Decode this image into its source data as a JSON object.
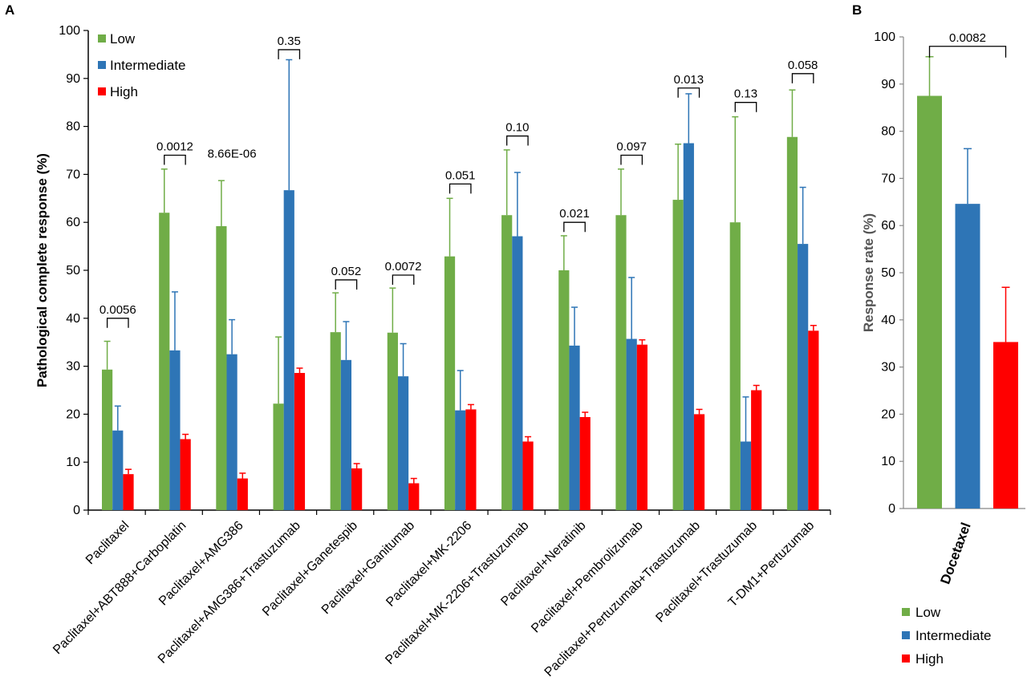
{
  "panel_a_label": "A",
  "panel_b_label": "B",
  "colors": {
    "Low": "#70ad47",
    "Intermediate": "#2e75b6",
    "High": "#ff0000"
  },
  "chart_data": [
    {
      "type": "bar",
      "ylabel": "Pathological complete response (%)",
      "ylim": [
        0,
        100
      ],
      "yticks": [
        0,
        10,
        20,
        30,
        40,
        50,
        60,
        70,
        80,
        90,
        100
      ],
      "grid": false,
      "legend_position": "top-left",
      "categories": [
        "Paclitaxel",
        "Paclitaxel+ABT888+Carboplatin",
        "Paclitaxel+AMG386",
        "Paclitaxel+AMG386+Trastuzumab",
        "Paclitaxel+Ganetespib",
        "Paclitaxel+Ganitumab",
        "Paclitaxel+MK-2206",
        "Paclitaxel+MK-2206+Trastuzumab",
        "Paclitaxel+Neratinib",
        "Paclitaxel+Pembrolizumab",
        "Paclitaxel+Pertuzumab+Trastuzumab",
        "Paclitaxel+Trastuzumab",
        "T-DM1+Pertuzumab"
      ],
      "series": [
        {
          "name": "Low",
          "values": [
            29.3,
            62.0,
            59.2,
            22.2,
            37.1,
            37.0,
            52.9,
            61.5,
            50.0,
            61.5,
            64.7,
            60.0,
            77.8
          ],
          "error_upper": [
            35.2,
            71.1,
            68.7,
            36.1,
            45.3,
            46.3,
            65.0,
            75.1,
            57.2,
            71.1,
            76.3,
            82.0,
            87.6
          ]
        },
        {
          "name": "Intermediate",
          "values": [
            16.6,
            33.3,
            32.5,
            66.7,
            31.3,
            27.9,
            20.8,
            57.1,
            34.3,
            35.7,
            76.5,
            14.3,
            55.5
          ],
          "error_upper": [
            21.7,
            45.5,
            39.7,
            93.9,
            39.3,
            34.7,
            29.1,
            70.4,
            42.3,
            48.5,
            86.8,
            23.6,
            67.3
          ]
        },
        {
          "name": "High",
          "values": [
            7.5,
            14.8,
            6.6,
            28.6,
            8.7,
            5.6,
            21.0,
            14.3,
            19.4,
            34.5,
            20.0,
            25.0,
            37.4
          ],
          "error_upper": [
            8.5,
            15.8,
            7.7,
            29.6,
            9.7,
            6.6,
            22.0,
            15.3,
            20.4,
            35.5,
            21.0,
            26.0,
            38.5
          ]
        }
      ],
      "annotations": [
        {
          "category_index": 0,
          "text": "0.0056",
          "level": 40
        },
        {
          "category_index": 1,
          "text": "0.0012",
          "level": 74
        },
        {
          "category_index": 2,
          "text": "8.66E-06",
          "level": null
        },
        {
          "category_index": 3,
          "text": "0.35",
          "level": 96
        },
        {
          "category_index": 4,
          "text": "0.052",
          "level": 48
        },
        {
          "category_index": 5,
          "text": "0.0072",
          "level": 49
        },
        {
          "category_index": 6,
          "text": "0.051",
          "level": 68
        },
        {
          "category_index": 7,
          "text": "0.10",
          "level": 78
        },
        {
          "category_index": 8,
          "text": "0.021",
          "level": 60
        },
        {
          "category_index": 9,
          "text": "0.097",
          "level": 74
        },
        {
          "category_index": 10,
          "text": "0.013",
          "level": 88
        },
        {
          "category_index": 11,
          "text": "0.13",
          "level": 85
        },
        {
          "category_index": 12,
          "text": "0.058",
          "level": 91
        }
      ]
    },
    {
      "type": "bar",
      "ylabel": "Response rate (%)",
      "ylim": [
        0,
        100
      ],
      "yticks": [
        0,
        10,
        20,
        30,
        40,
        50,
        60,
        70,
        80,
        90,
        100
      ],
      "grid": false,
      "legend_position": "bottom",
      "categories": [
        "Docetaxel"
      ],
      "series": [
        {
          "name": "Low",
          "values": [
            87.5
          ],
          "error_upper": [
            95.8
          ]
        },
        {
          "name": "Intermediate",
          "values": [
            64.6
          ],
          "error_upper": [
            76.3
          ]
        },
        {
          "name": "High",
          "values": [
            35.3
          ],
          "error_upper": [
            46.9
          ]
        }
      ],
      "annotations": [
        {
          "text": "0.0082",
          "level": 98
        }
      ]
    }
  ]
}
